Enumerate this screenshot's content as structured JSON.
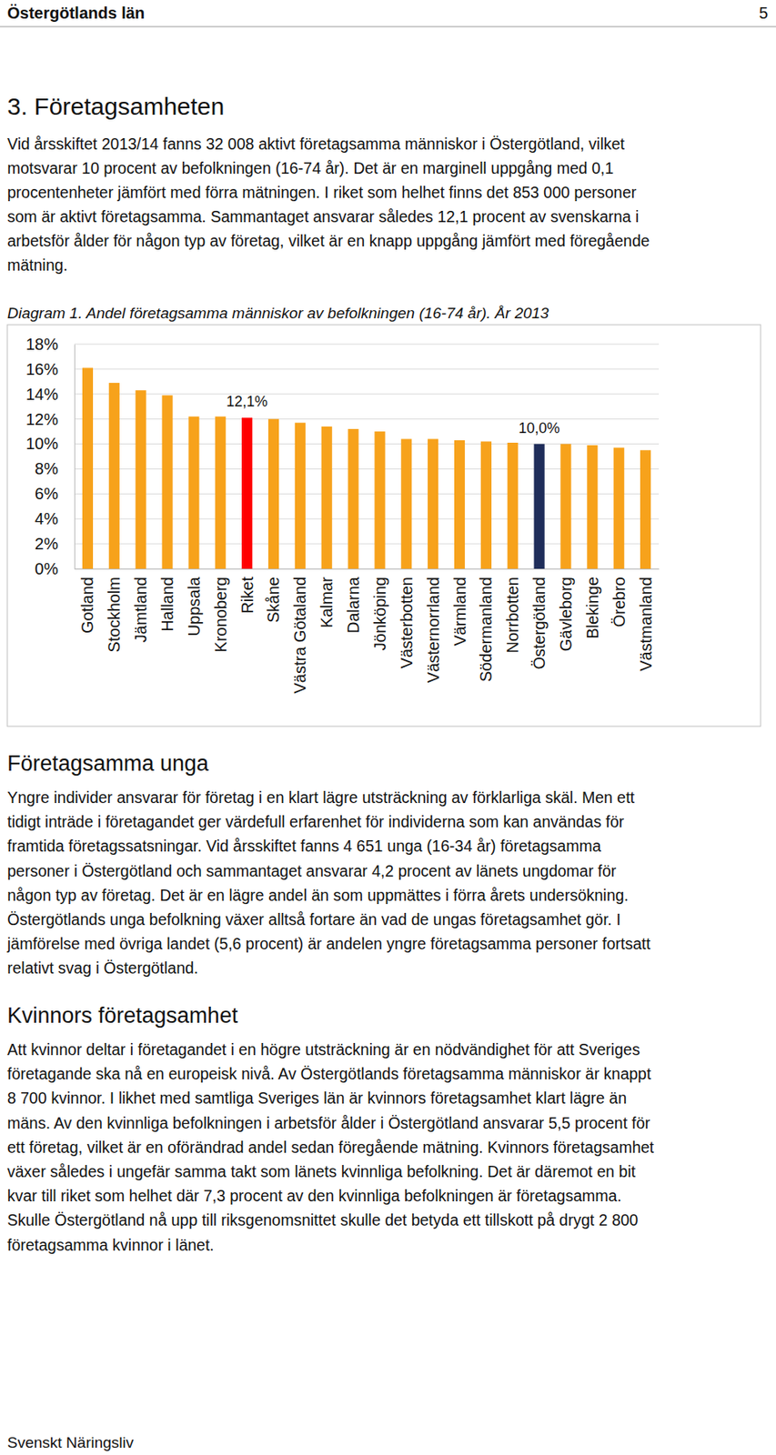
{
  "header": {
    "title": "Östergötlands län",
    "page": 5
  },
  "heading": "3. Företagsamheten",
  "intro": [
    "Vid årsskiftet 2013/14 fanns 32 008 aktivt företagsamma människor i Östergötland, vilket",
    "motsvarar 10 procent av befolkningen (16-74 år). Det är en marginell uppgång med 0,1",
    "procentenheter jämfört med förra mätningen. I riket som helhet finns det 853 000 personer",
    "som är aktivt företagsamma. Sammantaget ansvarar således 12,1 procent av svenskarna i",
    "arbetsför ålder för någon typ av företag, vilket är en knapp uppgång jämfört med föregående",
    "mätning."
  ],
  "sections": [
    {
      "heading": "Företagsamma unga",
      "lines": [
        "Yngre individer ansvarar för företag i en klart lägre utsträckning av förklarliga skäl. Men ett",
        "tidigt inträde i företagandet ger värdefull erfarenhet för individerna som kan användas för",
        "framtida företagssatsningar. Vid årsskiftet fanns 4 651 unga (16-34 år) företagsamma",
        "personer i Östergötland och sammantaget ansvarar 4,2 procent av länets ungdomar för",
        "någon typ av företag. Det är en lägre andel än som uppmättes i förra årets undersökning.",
        "Östergötlands unga befolkning växer alltså fortare än vad de ungas företagsamhet gör. I",
        "jämförelse med övriga landet (5,6 procent) är andelen yngre företagsamma personer fortsatt",
        "relativt svag i Östergötland."
      ]
    },
    {
      "heading": "Kvinnors företagsamhet",
      "lines": [
        "Att kvinnor deltar i företagandet i en högre utsträckning är en nödvändighet för att Sveriges",
        "företagande ska nå en europeisk nivå. Av Östergötlands företagsamma människor är knappt",
        "8 700 kvinnor. I likhet med samtliga Sveriges län är kvinnors företagsamhet klart lägre än",
        "mäns. Av den kvinnliga befolkningen i arbetsför ålder i Östergötland ansvarar 5,5 procent för",
        "ett företag, vilket är en oförändrad andel sedan föregående mätning. Kvinnors företagsamhet",
        "växer således i ungefär samma takt som länets kvinnliga befolkning. Det är däremot en bit",
        "kvar till riket som helhet där 7,3 procent av den kvinnliga befolkningen är företagsamma.",
        "Skulle Östergötland nå upp till riksgenomsnittet skulle det betyda ett tillskott på drygt 2 800",
        "företagsamma kvinnor i länet."
      ]
    }
  ],
  "footer": "Svenskt Näringsliv",
  "chart_data": {
    "type": "bar",
    "title": "Diagram 1. Andel företagsamma människor av befolkningen (16-74 år). År 2013",
    "categories": [
      "Gotland",
      "Stockholm",
      "Jämtland",
      "Halland",
      "Uppsala",
      "Kronoberg",
      "Riket",
      "Skåne",
      "Västra Götaland",
      "Kalmar",
      "Dalarna",
      "Jönköping",
      "Västerbotten",
      "Västernorrland",
      "Värmland",
      "Södermanland",
      "Norrbotten",
      "Östergötland",
      "Gävleborg",
      "Blekinge",
      "Örebro",
      "Västmanland"
    ],
    "values": [
      16.1,
      14.9,
      14.3,
      13.9,
      12.2,
      12.2,
      12.1,
      12.0,
      11.7,
      11.4,
      11.2,
      11.0,
      10.4,
      10.4,
      10.3,
      10.2,
      10.1,
      10.0,
      10.0,
      9.9,
      9.7,
      9.5
    ],
    "colors": [
      "#f7a21b",
      "#f7a21b",
      "#f7a21b",
      "#f7a21b",
      "#f7a21b",
      "#f7a21b",
      "#ff0000",
      "#f7a21b",
      "#f7a21b",
      "#f7a21b",
      "#f7a21b",
      "#f7a21b",
      "#f7a21b",
      "#f7a21b",
      "#f7a21b",
      "#f7a21b",
      "#f7a21b",
      "#1f2d5a",
      "#f7a21b",
      "#f7a21b",
      "#f7a21b",
      "#f7a21b"
    ],
    "ylim": [
      0,
      18
    ],
    "yticks": [
      {
        "value": 0,
        "label": "0%"
      },
      {
        "value": 2,
        "label": "2%"
      },
      {
        "value": 4,
        "label": "4%"
      },
      {
        "value": 6,
        "label": "6%"
      },
      {
        "value": 8,
        "label": "8%"
      },
      {
        "value": 10,
        "label": "10%"
      },
      {
        "value": 12,
        "label": "12%"
      },
      {
        "value": 14,
        "label": "14%"
      },
      {
        "value": 16,
        "label": "16%"
      },
      {
        "value": 18,
        "label": "18%"
      }
    ],
    "grid": true,
    "annotations": [
      {
        "category": "Riket",
        "text": "12,1%"
      },
      {
        "category": "Östergötland",
        "text": "10,0%"
      }
    ]
  }
}
